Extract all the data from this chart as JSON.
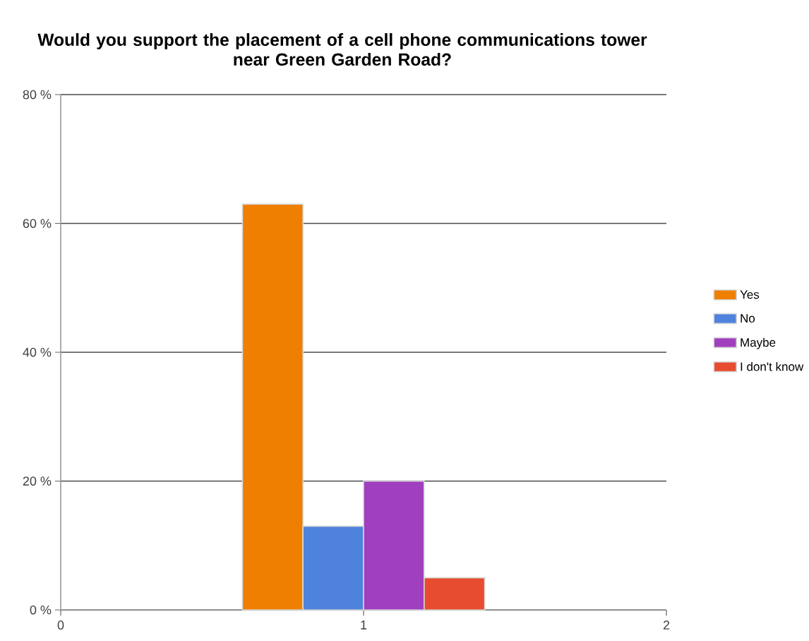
{
  "chart_data": {
    "type": "bar",
    "title": "Would you support the placement of a cell phone communications tower near Green Garden Road?",
    "xlim": [
      0,
      2
    ],
    "xticks": [
      0,
      1,
      2
    ],
    "ylim": [
      0,
      80
    ],
    "yticks": [
      {
        "value": 0,
        "label": "0 %"
      },
      {
        "value": 20,
        "label": "20 %"
      },
      {
        "value": 40,
        "label": "40 %"
      },
      {
        "value": 60,
        "label": "60 %"
      },
      {
        "value": 80,
        "label": "80 %"
      }
    ],
    "grid": "y",
    "legend": "right",
    "series": [
      {
        "name": "Yes",
        "color": "#ef7f00",
        "x": [
          0.7
        ],
        "values": [
          63
        ]
      },
      {
        "name": "No",
        "color": "#4f82dc",
        "x": [
          0.9
        ],
        "values": [
          13
        ]
      },
      {
        "name": "Maybe",
        "color": "#a040bf",
        "x": [
          1.1
        ],
        "values": [
          20
        ]
      },
      {
        "name": "I don't know",
        "color": "#e84c30",
        "x": [
          1.3
        ],
        "values": [
          5
        ]
      }
    ]
  }
}
